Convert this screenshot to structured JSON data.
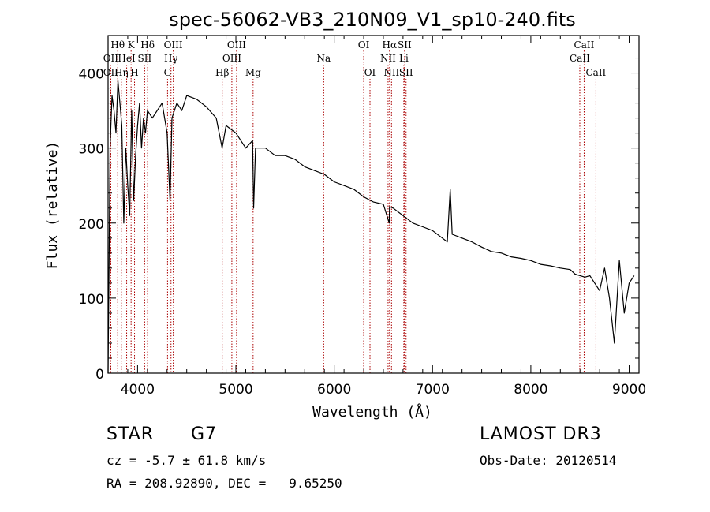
{
  "chart_data": {
    "type": "line",
    "title": "spec-56062-VB3_210N09_V1_sp10-240.fits",
    "xlabel": "Wavelength (Å)",
    "ylabel": "Flux (relative)",
    "xlim": [
      3700,
      9100
    ],
    "ylim": [
      0,
      450
    ],
    "xticks": [
      4000,
      5000,
      6000,
      7000,
      8000,
      9000
    ],
    "yticks": [
      0,
      100,
      200,
      300,
      400
    ],
    "series": [
      {
        "name": "flux",
        "x": [
          3700,
          3720,
          3740,
          3760,
          3780,
          3800,
          3820,
          3840,
          3860,
          3880,
          3900,
          3920,
          3940,
          3960,
          3980,
          4000,
          4020,
          4040,
          4060,
          4080,
          4100,
          4150,
          4200,
          4250,
          4300,
          4330,
          4350,
          4400,
          4450,
          4500,
          4600,
          4700,
          4800,
          4860,
          4900,
          5000,
          5100,
          5170,
          5180,
          5200,
          5300,
          5400,
          5500,
          5600,
          5700,
          5800,
          5900,
          6000,
          6100,
          6200,
          6300,
          6400,
          6500,
          6560,
          6563,
          6600,
          6700,
          6800,
          6900,
          7000,
          7100,
          7150,
          7180,
          7200,
          7300,
          7400,
          7500,
          7600,
          7700,
          7800,
          7900,
          8000,
          8100,
          8200,
          8300,
          8400,
          8450,
          8500,
          8550,
          8600,
          8650,
          8700,
          8750,
          8800,
          8850,
          8900,
          8950,
          9000,
          9050
        ],
        "y": [
          0,
          300,
          370,
          350,
          320,
          390,
          360,
          330,
          200,
          300,
          250,
          210,
          350,
          230,
          290,
          330,
          360,
          300,
          340,
          320,
          350,
          340,
          350,
          360,
          320,
          230,
          340,
          360,
          350,
          370,
          365,
          355,
          340,
          300,
          330,
          320,
          300,
          310,
          220,
          300,
          300,
          290,
          290,
          285,
          275,
          270,
          265,
          255,
          250,
          245,
          235,
          228,
          225,
          200,
          222,
          220,
          210,
          200,
          195,
          190,
          180,
          175,
          245,
          185,
          180,
          175,
          168,
          162,
          160,
          155,
          153,
          150,
          145,
          143,
          140,
          138,
          132,
          130,
          128,
          130,
          120,
          110,
          140,
          100,
          40,
          150,
          80,
          120,
          130
        ]
      }
    ],
    "lines_top": [
      {
        "label": "Hθ",
        "x": 3798
      },
      {
        "label": "K",
        "x": 3934
      },
      {
        "label": "Hδ",
        "x": 4102
      },
      {
        "label": "OIII",
        "x": 4363
      },
      {
        "label": "OIII",
        "x": 5007
      },
      {
        "label": "OI",
        "x": 6300
      },
      {
        "label": "Hα",
        "x": 6563
      },
      {
        "label": "SII",
        "x": 6716
      },
      {
        "label": "CaII",
        "x": 8542
      }
    ],
    "lines_mid": [
      {
        "label": "OII",
        "x": 3727
      },
      {
        "label": "HeI",
        "x": 3889
      },
      {
        "label": "SII",
        "x": 4072
      },
      {
        "label": "Hγ",
        "x": 4340
      },
      {
        "label": "OIII",
        "x": 4959
      },
      {
        "label": "Na",
        "x": 5893
      },
      {
        "label": "NII",
        "x": 6548
      },
      {
        "label": "Li",
        "x": 6708
      },
      {
        "label": "CaII",
        "x": 8498
      }
    ],
    "lines_low": [
      {
        "label": "OII",
        "x": 3727
      },
      {
        "label": "Hη",
        "x": 3835
      },
      {
        "label": "H",
        "x": 3969
      },
      {
        "label": "G",
        "x": 4305
      },
      {
        "label": "Hβ",
        "x": 4861
      },
      {
        "label": "Mg",
        "x": 5175
      },
      {
        "label": "OI",
        "x": 6364
      },
      {
        "label": "NII",
        "x": 6583
      },
      {
        "label": "SII",
        "x": 6731
      },
      {
        "label": "CaII",
        "x": 8662
      }
    ]
  },
  "info": {
    "object_class": "STAR",
    "subclass": "G7",
    "survey": "LAMOST DR3",
    "cz": "cz = -5.7 ± 61.8 km/s",
    "obs_date": "Obs-Date: 20120514",
    "radec": "RA = 208.92890, DEC =   9.65250"
  }
}
